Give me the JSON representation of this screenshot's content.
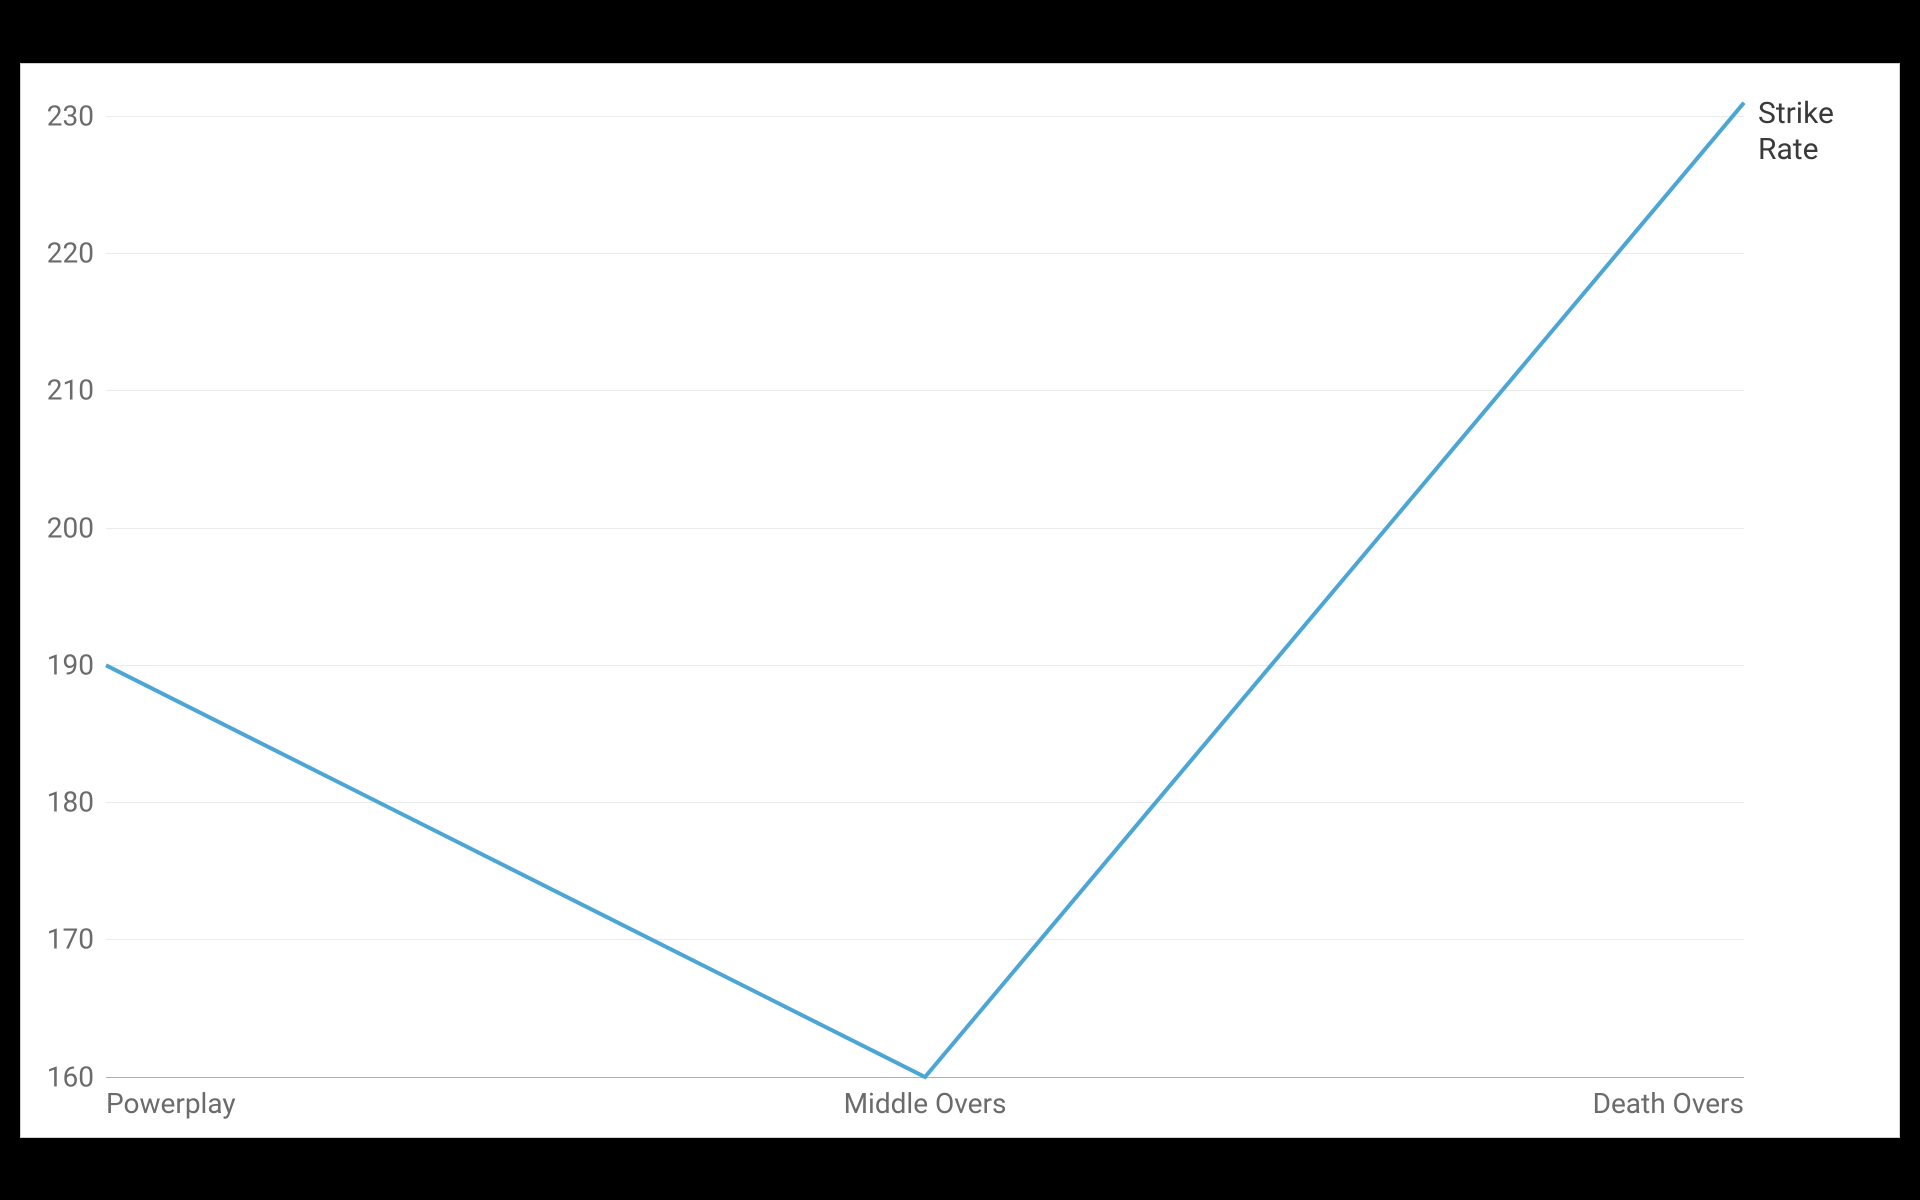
{
  "chart": {
    "type": "line",
    "background_color": "#ffffff",
    "outer_background": "#000000",
    "border_color": "#d0d0d0",
    "grid_color": "#ebebeb",
    "axis_color": "#b0b0b0",
    "tick_label_color": "#6b6b6b",
    "tick_fontsize": 28,
    "series_label_color": "#3a3a3a",
    "series_label_fontsize": 30,
    "ylim": [
      160,
      232
    ],
    "yticks": [
      160,
      170,
      180,
      190,
      200,
      210,
      220,
      230
    ],
    "categories": [
      "Powerplay",
      "Middle Overs",
      "Death Overs"
    ],
    "series": {
      "label_line1": "Strike",
      "label_line2": "Rate",
      "color": "#4ba6d6",
      "line_width": 4,
      "values": [
        190,
        160,
        231
      ]
    }
  }
}
